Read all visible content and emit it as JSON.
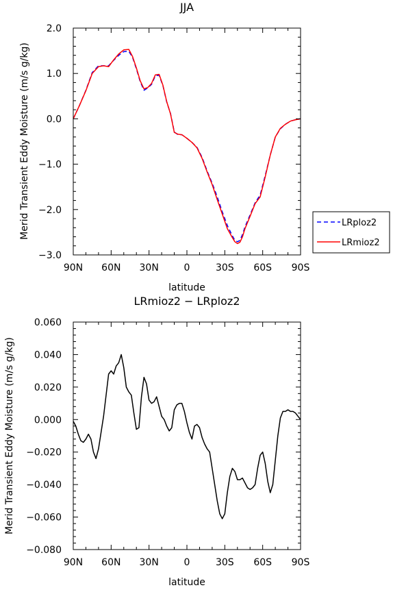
{
  "chart_data": [
    {
      "type": "line",
      "title": "JJA",
      "xlabel": "latitude",
      "ylabel": "Merid Transient Eddy Moisture (m/s g/kg)",
      "xlim": [
        90,
        -90
      ],
      "ylim": [
        -3.0,
        2.0
      ],
      "xticks": [
        90,
        60,
        30,
        0,
        -30,
        -60,
        -90
      ],
      "xtick_labels": [
        "90N",
        "60N",
        "30N",
        "0",
        "30S",
        "60S",
        "90S"
      ],
      "yticks": [
        -3.0,
        -2.0,
        -1.0,
        0.0,
        1.0,
        2.0
      ],
      "ytick_labels": [
        "−3.0",
        "−2.0",
        "−1.0",
        "0.0",
        "1.0",
        "2.0"
      ],
      "legend": "right",
      "series": [
        {
          "name": "LRploz2",
          "color": "#0000ff",
          "dash": true,
          "x": [
            90,
            85,
            80,
            75,
            70,
            66,
            62,
            58,
            54,
            50,
            46,
            43,
            40,
            37,
            34,
            31,
            28,
            25,
            22,
            19,
            16,
            13,
            10,
            7,
            4,
            0,
            -4,
            -8,
            -12,
            -16,
            -20,
            -24,
            -28,
            -32,
            -36,
            -38,
            -40,
            -42,
            -44,
            -46,
            -50,
            -54,
            -58,
            -62,
            -66,
            -70,
            -74,
            -78,
            -82,
            -86,
            -90
          ],
          "y": [
            0.0,
            0.3,
            0.63,
            1.02,
            1.17,
            1.17,
            1.17,
            1.29,
            1.4,
            1.48,
            1.49,
            1.35,
            1.1,
            0.82,
            0.63,
            0.68,
            0.76,
            0.95,
            0.96,
            0.73,
            0.37,
            0.12,
            -0.29,
            -0.35,
            -0.35,
            -0.43,
            -0.52,
            -0.63,
            -0.85,
            -1.15,
            -1.42,
            -1.72,
            -2.05,
            -2.35,
            -2.58,
            -2.68,
            -2.71,
            -2.68,
            -2.55,
            -2.38,
            -2.12,
            -1.85,
            -1.68,
            -1.25,
            -0.8,
            -0.4,
            -0.22,
            -0.12,
            -0.05,
            -0.02,
            0.0
          ]
        },
        {
          "name": "LRmioz2",
          "color": "#ff0000",
          "dash": false,
          "x": [
            90,
            85,
            80,
            75,
            70,
            66,
            62,
            58,
            54,
            50,
            46,
            43,
            40,
            37,
            34,
            31,
            28,
            25,
            22,
            19,
            16,
            13,
            10,
            7,
            4,
            0,
            -4,
            -8,
            -12,
            -16,
            -20,
            -24,
            -28,
            -32,
            -36,
            -38,
            -40,
            -42,
            -44,
            -46,
            -50,
            -54,
            -58,
            -62,
            -66,
            -70,
            -74,
            -78,
            -82,
            -86,
            -90
          ],
          "y": [
            0.0,
            0.3,
            0.62,
            1.0,
            1.15,
            1.17,
            1.15,
            1.3,
            1.43,
            1.52,
            1.53,
            1.37,
            1.12,
            0.84,
            0.66,
            0.69,
            0.78,
            0.97,
            0.98,
            0.74,
            0.38,
            0.11,
            -0.3,
            -0.34,
            -0.35,
            -0.43,
            -0.52,
            -0.64,
            -0.87,
            -1.17,
            -1.45,
            -1.78,
            -2.1,
            -2.42,
            -2.62,
            -2.71,
            -2.75,
            -2.72,
            -2.6,
            -2.42,
            -2.15,
            -1.87,
            -1.72,
            -1.28,
            -0.8,
            -0.4,
            -0.21,
            -0.12,
            -0.05,
            -0.02,
            0.0
          ]
        }
      ]
    },
    {
      "type": "line",
      "title": "LRmioz2 − LRploz2",
      "xlabel": "latitude",
      "ylabel": "Merid Transient Eddy Moisture (m/s g/kg)",
      "xlim": [
        90,
        -90
      ],
      "ylim": [
        -0.08,
        0.06
      ],
      "xticks": [
        90,
        60,
        30,
        0,
        -30,
        -60,
        -90
      ],
      "xtick_labels": [
        "90N",
        "60N",
        "30N",
        "0",
        "30S",
        "60S",
        "90S"
      ],
      "yticks": [
        -0.08,
        -0.06,
        -0.04,
        -0.02,
        0.0,
        0.02,
        0.04,
        0.06
      ],
      "ytick_labels": [
        "−0.080",
        "−0.060",
        "−0.040",
        "−0.020",
        "0.000",
        "0.020",
        "0.040",
        "0.060"
      ],
      "series": [
        {
          "color": "#000000",
          "dash": false,
          "x": [
            90,
            88,
            86,
            84,
            82,
            80,
            78,
            76,
            74,
            72,
            70,
            68,
            66,
            64,
            62,
            60,
            58,
            56,
            54,
            52,
            50,
            48,
            46,
            44,
            42,
            40,
            38,
            36,
            34,
            32,
            30,
            28,
            26,
            24,
            22,
            20,
            18,
            16,
            14,
            12,
            10,
            8,
            6,
            4,
            2,
            0,
            -2,
            -4,
            -6,
            -8,
            -10,
            -12,
            -14,
            -16,
            -18,
            -20,
            -22,
            -24,
            -26,
            -28,
            -30,
            -32,
            -34,
            -36,
            -38,
            -40,
            -42,
            -44,
            -46,
            -48,
            -50,
            -52,
            -54,
            -56,
            -58,
            -60,
            -62,
            -64,
            -66,
            -68,
            -70,
            -72,
            -74,
            -76,
            -78,
            -80,
            -82,
            -84,
            -86,
            -88,
            -90
          ],
          "y": [
            -0.001,
            -0.004,
            -0.009,
            -0.013,
            -0.014,
            -0.012,
            -0.009,
            -0.012,
            -0.02,
            -0.024,
            -0.018,
            -0.008,
            0.002,
            0.015,
            0.028,
            0.03,
            0.028,
            0.033,
            0.035,
            0.04,
            0.032,
            0.02,
            0.017,
            0.015,
            0.004,
            -0.006,
            -0.005,
            0.014,
            0.026,
            0.022,
            0.012,
            0.01,
            0.011,
            0.014,
            0.008,
            0.002,
            0.0,
            -0.004,
            -0.007,
            -0.005,
            0.006,
            0.009,
            0.01,
            0.01,
            0.005,
            -0.002,
            -0.008,
            -0.012,
            -0.004,
            -0.003,
            -0.005,
            -0.011,
            -0.015,
            -0.018,
            -0.02,
            -0.03,
            -0.04,
            -0.05,
            -0.058,
            -0.061,
            -0.058,
            -0.045,
            -0.035,
            -0.03,
            -0.032,
            -0.037,
            -0.037,
            -0.036,
            -0.039,
            -0.042,
            -0.043,
            -0.042,
            -0.04,
            -0.03,
            -0.022,
            -0.02,
            -0.027,
            -0.038,
            -0.045,
            -0.04,
            -0.025,
            -0.01,
            0.001,
            0.005,
            0.005,
            0.006,
            0.005,
            0.005,
            0.004,
            0.002,
            0.0
          ]
        }
      ]
    }
  ]
}
